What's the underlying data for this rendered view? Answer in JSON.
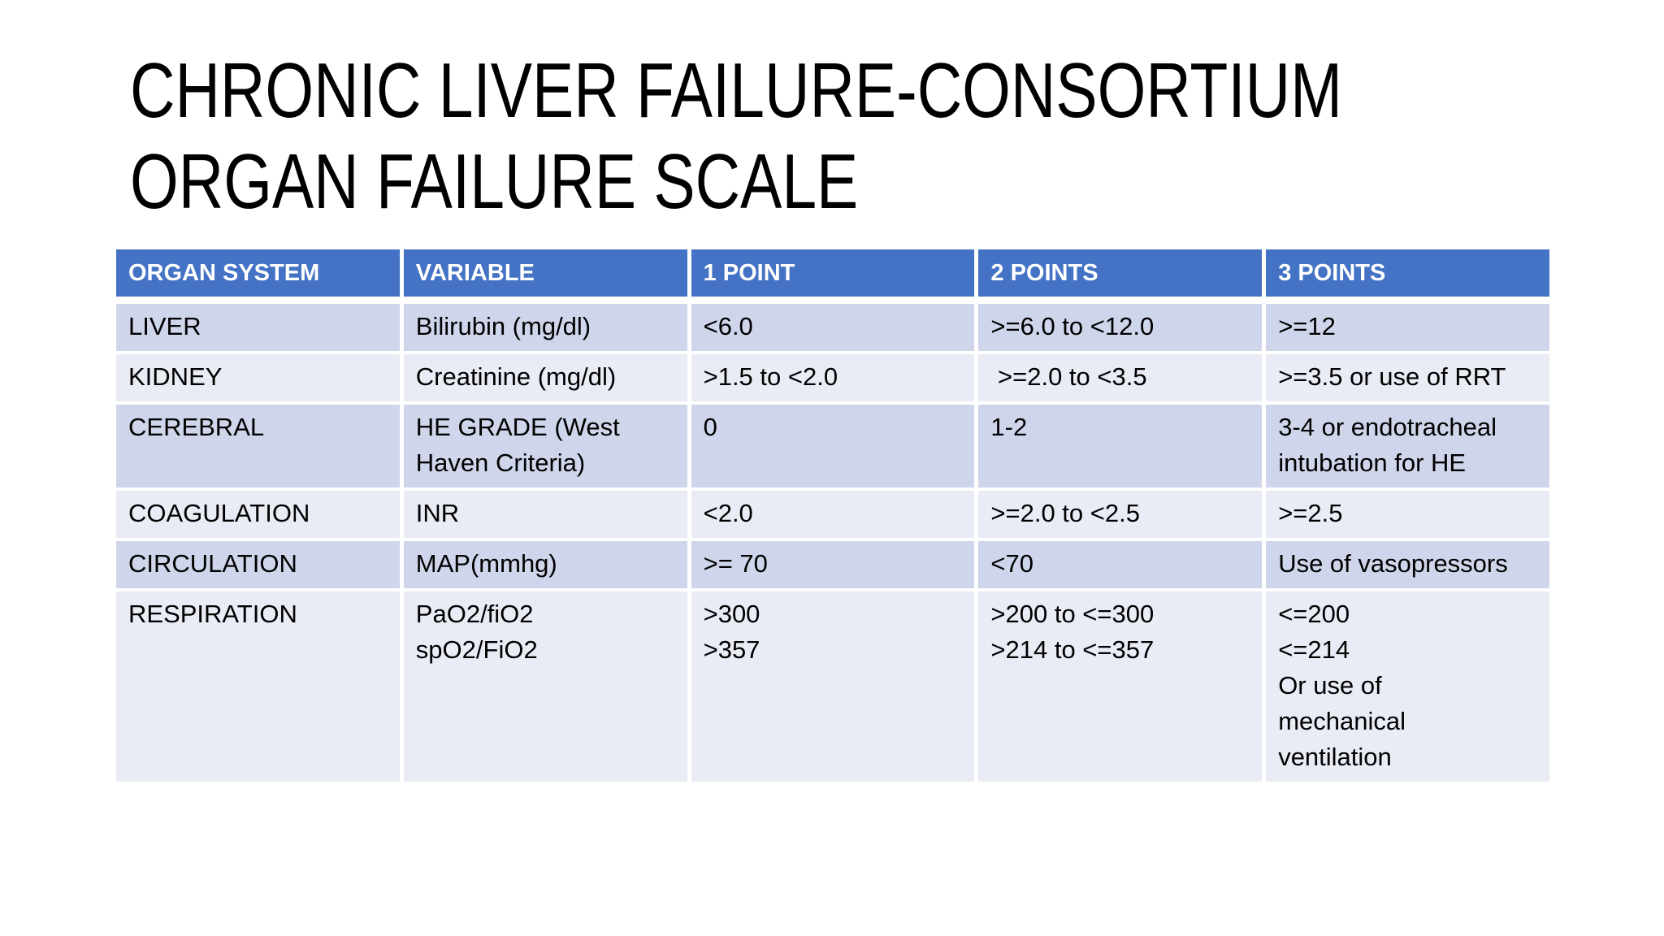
{
  "slide": {
    "title_lines": [
      "CHRONIC LIVER FAILURE-CONSORTIUM",
      "ORGAN FAILURE SCALE"
    ]
  },
  "colors": {
    "slide_bg": "#FFFFFF",
    "header_bg": "#4472C4",
    "header_text": "#FFFFFF",
    "row_dark_bg": "#CFD5EA",
    "row_light_bg": "#E9EBF5",
    "body_text": "#000000"
  },
  "table": {
    "columns": [
      "ORGAN SYSTEM",
      "VARIABLE",
      "1 POINT",
      "2 POINTS",
      "3 POINTS"
    ],
    "rows": [
      {
        "shade": "dark",
        "cells": [
          [
            "LIVER"
          ],
          [
            "Bilirubin (mg/dl)"
          ],
          [
            "<6.0"
          ],
          [
            ">=6.0 to <12.0"
          ],
          [
            ">=12"
          ]
        ]
      },
      {
        "shade": "light",
        "cells": [
          [
            "KIDNEY"
          ],
          [
            "Creatinine (mg/dl)"
          ],
          [
            ">1.5 to <2.0"
          ],
          [
            " >=2.0 to <3.5"
          ],
          [
            ">=3.5 or use of RRT"
          ]
        ]
      },
      {
        "shade": "dark",
        "cells": [
          [
            "CEREBRAL"
          ],
          [
            "HE GRADE (West",
            "Haven Criteria)"
          ],
          [
            "0"
          ],
          [
            "1-2"
          ],
          [
            "3-4 or endotracheal",
            "intubation for HE"
          ]
        ]
      },
      {
        "shade": "light",
        "cells": [
          [
            "COAGULATION"
          ],
          [
            "INR"
          ],
          [
            "<2.0"
          ],
          [
            ">=2.0 to <2.5"
          ],
          [
            ">=2.5"
          ]
        ]
      },
      {
        "shade": "dark",
        "cells": [
          [
            "CIRCULATION"
          ],
          [
            "MAP(mmhg)"
          ],
          [
            ">= 70"
          ],
          [
            "<70"
          ],
          [
            "Use of vasopressors"
          ]
        ]
      },
      {
        "shade": "light",
        "cells": [
          [
            "RESPIRATION"
          ],
          [
            "PaO2/fiO2",
            "spO2/FiO2"
          ],
          [
            ">300",
            ">357"
          ],
          [
            ">200 to <=300",
            ">214 to <=357"
          ],
          [
            "<=200",
            "<=214",
            "Or use of",
            "mechanical",
            "ventilation"
          ]
        ]
      }
    ]
  }
}
